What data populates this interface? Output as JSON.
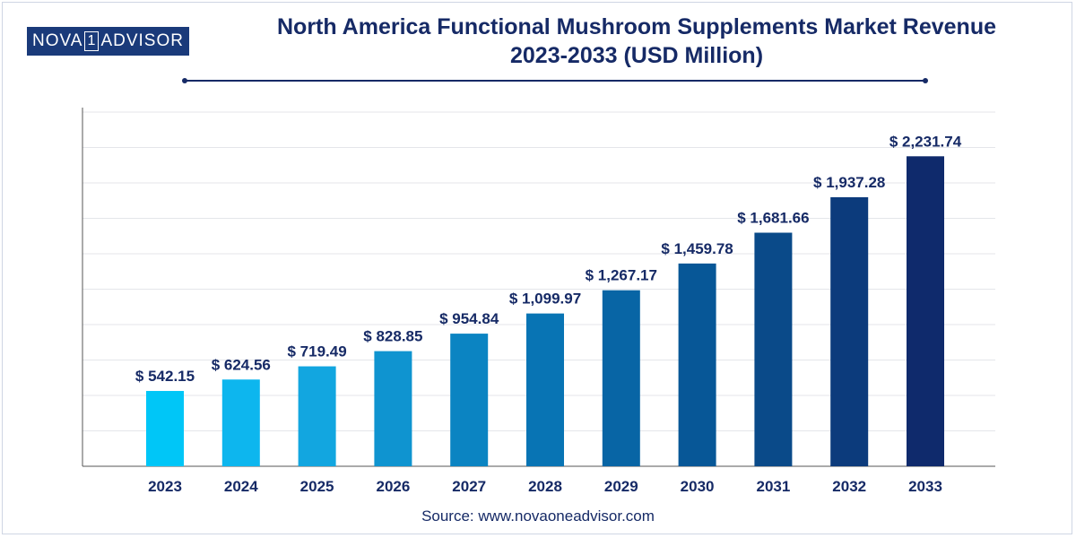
{
  "brand": {
    "left": "NOVA",
    "mid": "1",
    "right": "ADVISOR"
  },
  "title_line1": "North America Functional Mushroom Supplements Market Revenue",
  "title_line2": "2023-2033 (USD Million)",
  "source": "Source: www.novaoneadvisor.com",
  "chart_data": {
    "type": "bar",
    "title": "North America Functional Mushroom Supplements Market Revenue 2023-2033 (USD Million)",
    "categories": [
      "2023",
      "2024",
      "2025",
      "2026",
      "2027",
      "2028",
      "2029",
      "2030",
      "2031",
      "2032",
      "2033"
    ],
    "values": [
      542.15,
      624.56,
      719.49,
      828.85,
      954.84,
      1099.97,
      1267.17,
      1459.78,
      1681.66,
      1937.28,
      2231.74
    ],
    "labels": [
      "$ 542.15",
      "$ 624.56",
      "$ 719.49",
      "$ 828.85",
      "$ 954.84",
      "$ 1,099.97",
      "$ 1,267.17",
      "$ 1,459.78",
      "$ 1,681.66",
      "$ 1,937.28",
      "$ 2,231.74"
    ],
    "colors": [
      "#00c6f7",
      "#0db6ee",
      "#12a6e0",
      "#0f94d0",
      "#0b84c2",
      "#0874b4",
      "#0865a5",
      "#075797",
      "#0a4a89",
      "#0c3b7c",
      "#0f2a6c"
    ],
    "ylim": [
      0,
      2550
    ],
    "grid": true,
    "xlabel": "",
    "ylabel": ""
  }
}
